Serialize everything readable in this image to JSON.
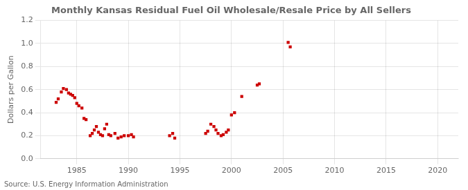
{
  "chart_data": {
    "type": "scatter",
    "title": "Monthly Kansas Residual Fuel Oil Wholesale/Resale Price by All Sellers",
    "ylabel": "Dollars per Gallon",
    "annotations": [
      "Source: U.S. Energy Information Administration"
    ],
    "x": [
      1983.0,
      1983.2,
      1983.5,
      1983.7,
      1984.0,
      1984.2,
      1984.4,
      1984.6,
      1984.8,
      1985.0,
      1985.2,
      1985.5,
      1985.7,
      1985.9,
      1986.3,
      1986.5,
      1986.7,
      1986.9,
      1987.1,
      1987.3,
      1987.5,
      1987.7,
      1987.9,
      1988.1,
      1988.3,
      1988.7,
      1989.0,
      1989.3,
      1989.6,
      1990.0,
      1990.3,
      1990.5,
      1994.0,
      1994.3,
      1994.5,
      1997.5,
      1997.7,
      1998.0,
      1998.3,
      1998.5,
      1998.7,
      1999.0,
      1999.2,
      1999.5,
      1999.7,
      2000.0,
      2000.3,
      2001.0,
      2002.5,
      2002.7,
      2005.5,
      2005.7
    ],
    "values": [
      0.49,
      0.52,
      0.58,
      0.61,
      0.6,
      0.57,
      0.56,
      0.55,
      0.53,
      0.48,
      0.46,
      0.44,
      0.35,
      0.34,
      0.2,
      0.22,
      0.25,
      0.28,
      0.23,
      0.21,
      0.2,
      0.26,
      0.3,
      0.21,
      0.2,
      0.22,
      0.18,
      0.19,
      0.2,
      0.2,
      0.21,
      0.19,
      0.2,
      0.22,
      0.18,
      0.22,
      0.24,
      0.3,
      0.28,
      0.25,
      0.22,
      0.2,
      0.21,
      0.23,
      0.25,
      0.38,
      0.4,
      0.54,
      0.64,
      0.65,
      1.01,
      0.97
    ],
    "color": "#cc0000",
    "marker": "square",
    "xlim": [
      1981.5,
      2022
    ],
    "ylim": [
      0.0,
      1.2
    ],
    "xticks": [
      1985,
      1990,
      1995,
      2000,
      2005,
      2010,
      2015,
      2020
    ],
    "yticks": [
      {
        "value": 0,
        "label": "0.0"
      },
      0.2,
      0.4,
      0.6,
      0.8,
      {
        "value": 1,
        "label": "1.0"
      },
      1.2
    ],
    "grid": true
  }
}
